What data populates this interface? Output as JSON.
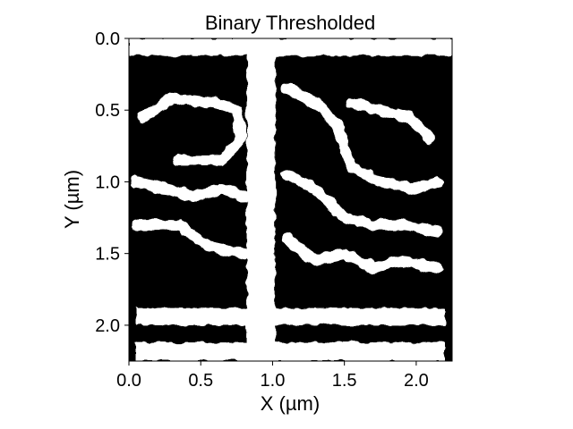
{
  "chart_data": {
    "type": "heatmap",
    "title": "Binary Thresholded",
    "xlabel": "X (µm)",
    "ylabel": "Y (µm)",
    "xlim": [
      0.0,
      2.25
    ],
    "ylim": [
      2.25,
      0.0
    ],
    "xticks": [
      0.0,
      0.5,
      1.0,
      1.5,
      2.0
    ],
    "yticks": [
      0.0,
      0.5,
      1.0,
      1.5,
      2.0
    ],
    "xtick_labels": [
      "0.0",
      "0.5",
      "1.0",
      "1.5",
      "2.0"
    ],
    "ytick_labels": [
      "0.0",
      "0.5",
      "1.0",
      "1.5",
      "2.0"
    ],
    "colormap": "binary (black = 0, white = 1)",
    "grid": false,
    "colors": {
      "foreground": "#000000",
      "background": "#ffffff"
    },
    "threshold_mask_white_regions": [
      {
        "shape": "rect",
        "x": [
          0.0,
          2.25
        ],
        "y": [
          0.0,
          0.12
        ]
      },
      {
        "shape": "rect",
        "x": [
          0.82,
          1.02
        ],
        "y": [
          0.0,
          2.25
        ]
      },
      {
        "shape": "path",
        "points": [
          [
            0.1,
            0.55
          ],
          [
            0.3,
            0.42
          ],
          [
            0.6,
            0.45
          ],
          [
            0.75,
            0.5
          ],
          [
            0.78,
            0.7
          ],
          [
            0.65,
            0.85
          ],
          [
            0.35,
            0.85
          ]
        ]
      },
      {
        "shape": "path",
        "points": [
          [
            0.05,
            1.0
          ],
          [
            0.25,
            1.05
          ],
          [
            0.45,
            1.1
          ],
          [
            0.65,
            1.05
          ],
          [
            0.8,
            1.1
          ]
        ]
      },
      {
        "shape": "path",
        "points": [
          [
            0.05,
            1.3
          ],
          [
            0.35,
            1.3
          ],
          [
            0.55,
            1.45
          ],
          [
            0.8,
            1.5
          ]
        ]
      },
      {
        "shape": "path",
        "points": [
          [
            1.1,
            0.35
          ],
          [
            1.3,
            0.45
          ],
          [
            1.45,
            0.6
          ],
          [
            1.55,
            0.9
          ],
          [
            1.75,
            1.0
          ],
          [
            2.0,
            1.05
          ],
          [
            2.15,
            1.0
          ]
        ]
      },
      {
        "shape": "path",
        "points": [
          [
            1.1,
            0.95
          ],
          [
            1.3,
            1.05
          ],
          [
            1.5,
            1.25
          ],
          [
            1.7,
            1.3
          ],
          [
            1.9,
            1.3
          ],
          [
            2.15,
            1.35
          ]
        ]
      },
      {
        "shape": "path",
        "points": [
          [
            1.55,
            0.45
          ],
          [
            1.75,
            0.5
          ],
          [
            1.95,
            0.55
          ],
          [
            2.1,
            0.7
          ]
        ]
      },
      {
        "shape": "path",
        "points": [
          [
            1.1,
            1.4
          ],
          [
            1.3,
            1.55
          ],
          [
            1.5,
            1.5
          ],
          [
            1.7,
            1.6
          ],
          [
            1.9,
            1.55
          ],
          [
            2.15,
            1.6
          ]
        ]
      },
      {
        "shape": "rect",
        "x": [
          0.05,
          2.2
        ],
        "y": [
          1.88,
          2.0
        ]
      },
      {
        "shape": "rect",
        "x": [
          0.05,
          2.2
        ],
        "y": [
          2.12,
          2.25
        ]
      }
    ]
  }
}
